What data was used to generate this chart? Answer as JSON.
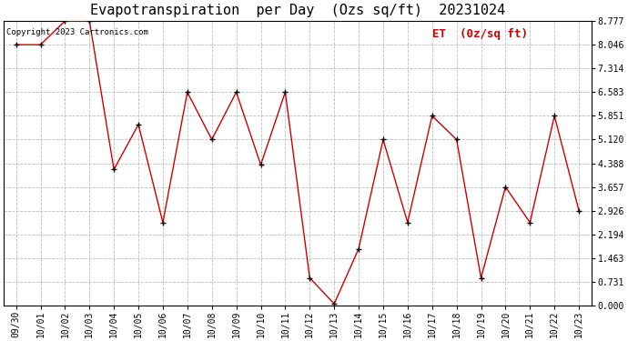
{
  "title": "Evapotranspiration  per Day  (Ozs sq/ft)  20231024",
  "copyright_text": "Copyright 2023 Cartronics.com",
  "legend_label": "ET  (0z/sq ft)",
  "x_labels": [
    "09/30",
    "10/01",
    "10/02",
    "10/03",
    "10/04",
    "10/05",
    "10/06",
    "10/07",
    "10/08",
    "10/09",
    "10/10",
    "10/11",
    "10/12",
    "10/13",
    "10/14",
    "10/15",
    "10/16",
    "10/17",
    "10/18",
    "10/19",
    "10/20",
    "10/21",
    "10/22",
    "10/23"
  ],
  "y_values": [
    8.046,
    8.046,
    8.777,
    8.777,
    4.194,
    5.583,
    2.56,
    6.583,
    5.12,
    6.583,
    4.34,
    6.583,
    0.85,
    0.05,
    1.75,
    5.12,
    2.56,
    5.851,
    5.12,
    0.85,
    3.657,
    2.56,
    5.851,
    2.926
  ],
  "line_color": "#cc0000",
  "marker_color": "black",
  "grid_color": "#bbbbbb",
  "background_color": "#ffffff",
  "y_ticks": [
    0.0,
    0.731,
    1.463,
    2.194,
    2.926,
    3.657,
    4.388,
    5.12,
    5.851,
    6.583,
    7.314,
    8.046,
    8.777
  ],
  "y_min": 0.0,
  "y_max": 8.777,
  "title_fontsize": 11,
  "copyright_fontsize": 6.5,
  "legend_fontsize": 9,
  "tick_fontsize": 7,
  "figwidth": 6.9,
  "figheight": 3.75,
  "dpi": 100
}
